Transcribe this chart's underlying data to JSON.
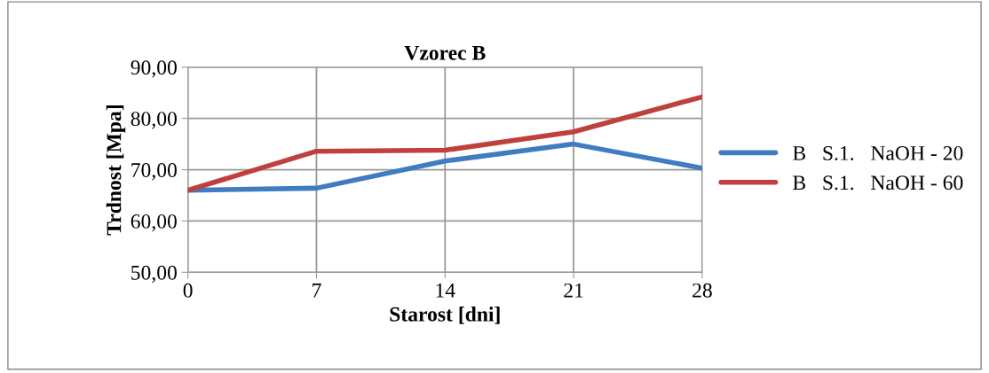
{
  "chart_data": {
    "type": "line",
    "title": "Vzorec B",
    "xlabel": "Starost [dni]",
    "ylabel": "Trdnost [Mpa]",
    "x": [
      0,
      7,
      14,
      21,
      28
    ],
    "series": [
      {
        "name": "B   S.1.   NaOH - 20",
        "color": "#3f7cc0",
        "values": [
          66.0,
          66.4,
          71.7,
          75.0,
          70.3
        ]
      },
      {
        "name": "B   S.1.   NaOH - 60",
        "color": "#c0403d",
        "values": [
          66.0,
          73.6,
          73.8,
          77.4,
          84.2
        ]
      }
    ],
    "xlim": [
      0,
      28
    ],
    "xticks": [
      0,
      7,
      14,
      21,
      28
    ],
    "ylim": [
      50,
      90
    ],
    "yticks": [
      {
        "value": 50,
        "label": "50,00"
      },
      {
        "value": 60,
        "label": "60,00"
      },
      {
        "value": 70,
        "label": "70,00"
      },
      {
        "value": 80,
        "label": "80,00"
      },
      {
        "value": 90,
        "label": "90,00"
      }
    ],
    "grid": true,
    "legend": "right",
    "marker": "none",
    "line_style": "solid"
  }
}
